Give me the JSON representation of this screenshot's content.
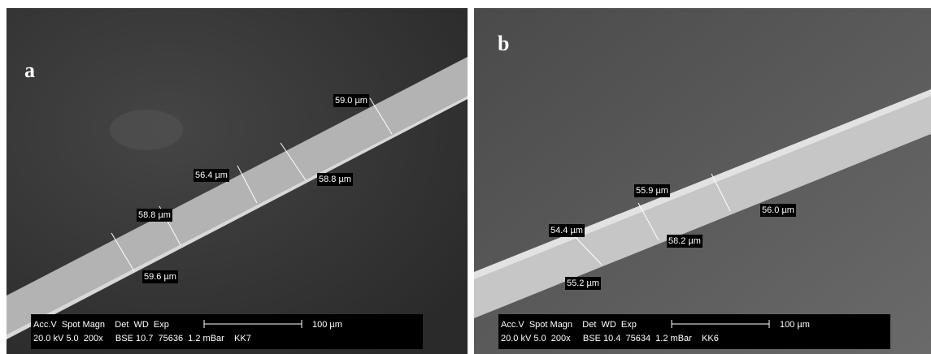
{
  "panels": [
    {
      "label": "a",
      "measurements": [
        "59.0 µm",
        "56.4 µm",
        "58.8 µm",
        "58.8 µm",
        "59.6 µm"
      ],
      "info": {
        "header": "Acc.V  Spot Magn    Det  WD  Exp",
        "values": "20.0 kV 5.0  200x     BSE 10.7  75636  1.2 mBar    KK7",
        "scale": "100 µm"
      }
    },
    {
      "label": "b",
      "measurements": [
        "55.9 µm",
        "56.0 µm",
        "54.4 µm",
        "58.2 µm",
        "55.2 µm"
      ],
      "info": {
        "header": "Acc.V  Spot Magn    Det  WD  Exp",
        "values": "20.0 kV 5.0  200x     BSE 10.4  75634  1.2 mBar    KK6",
        "scale": "100 µm"
      }
    }
  ]
}
